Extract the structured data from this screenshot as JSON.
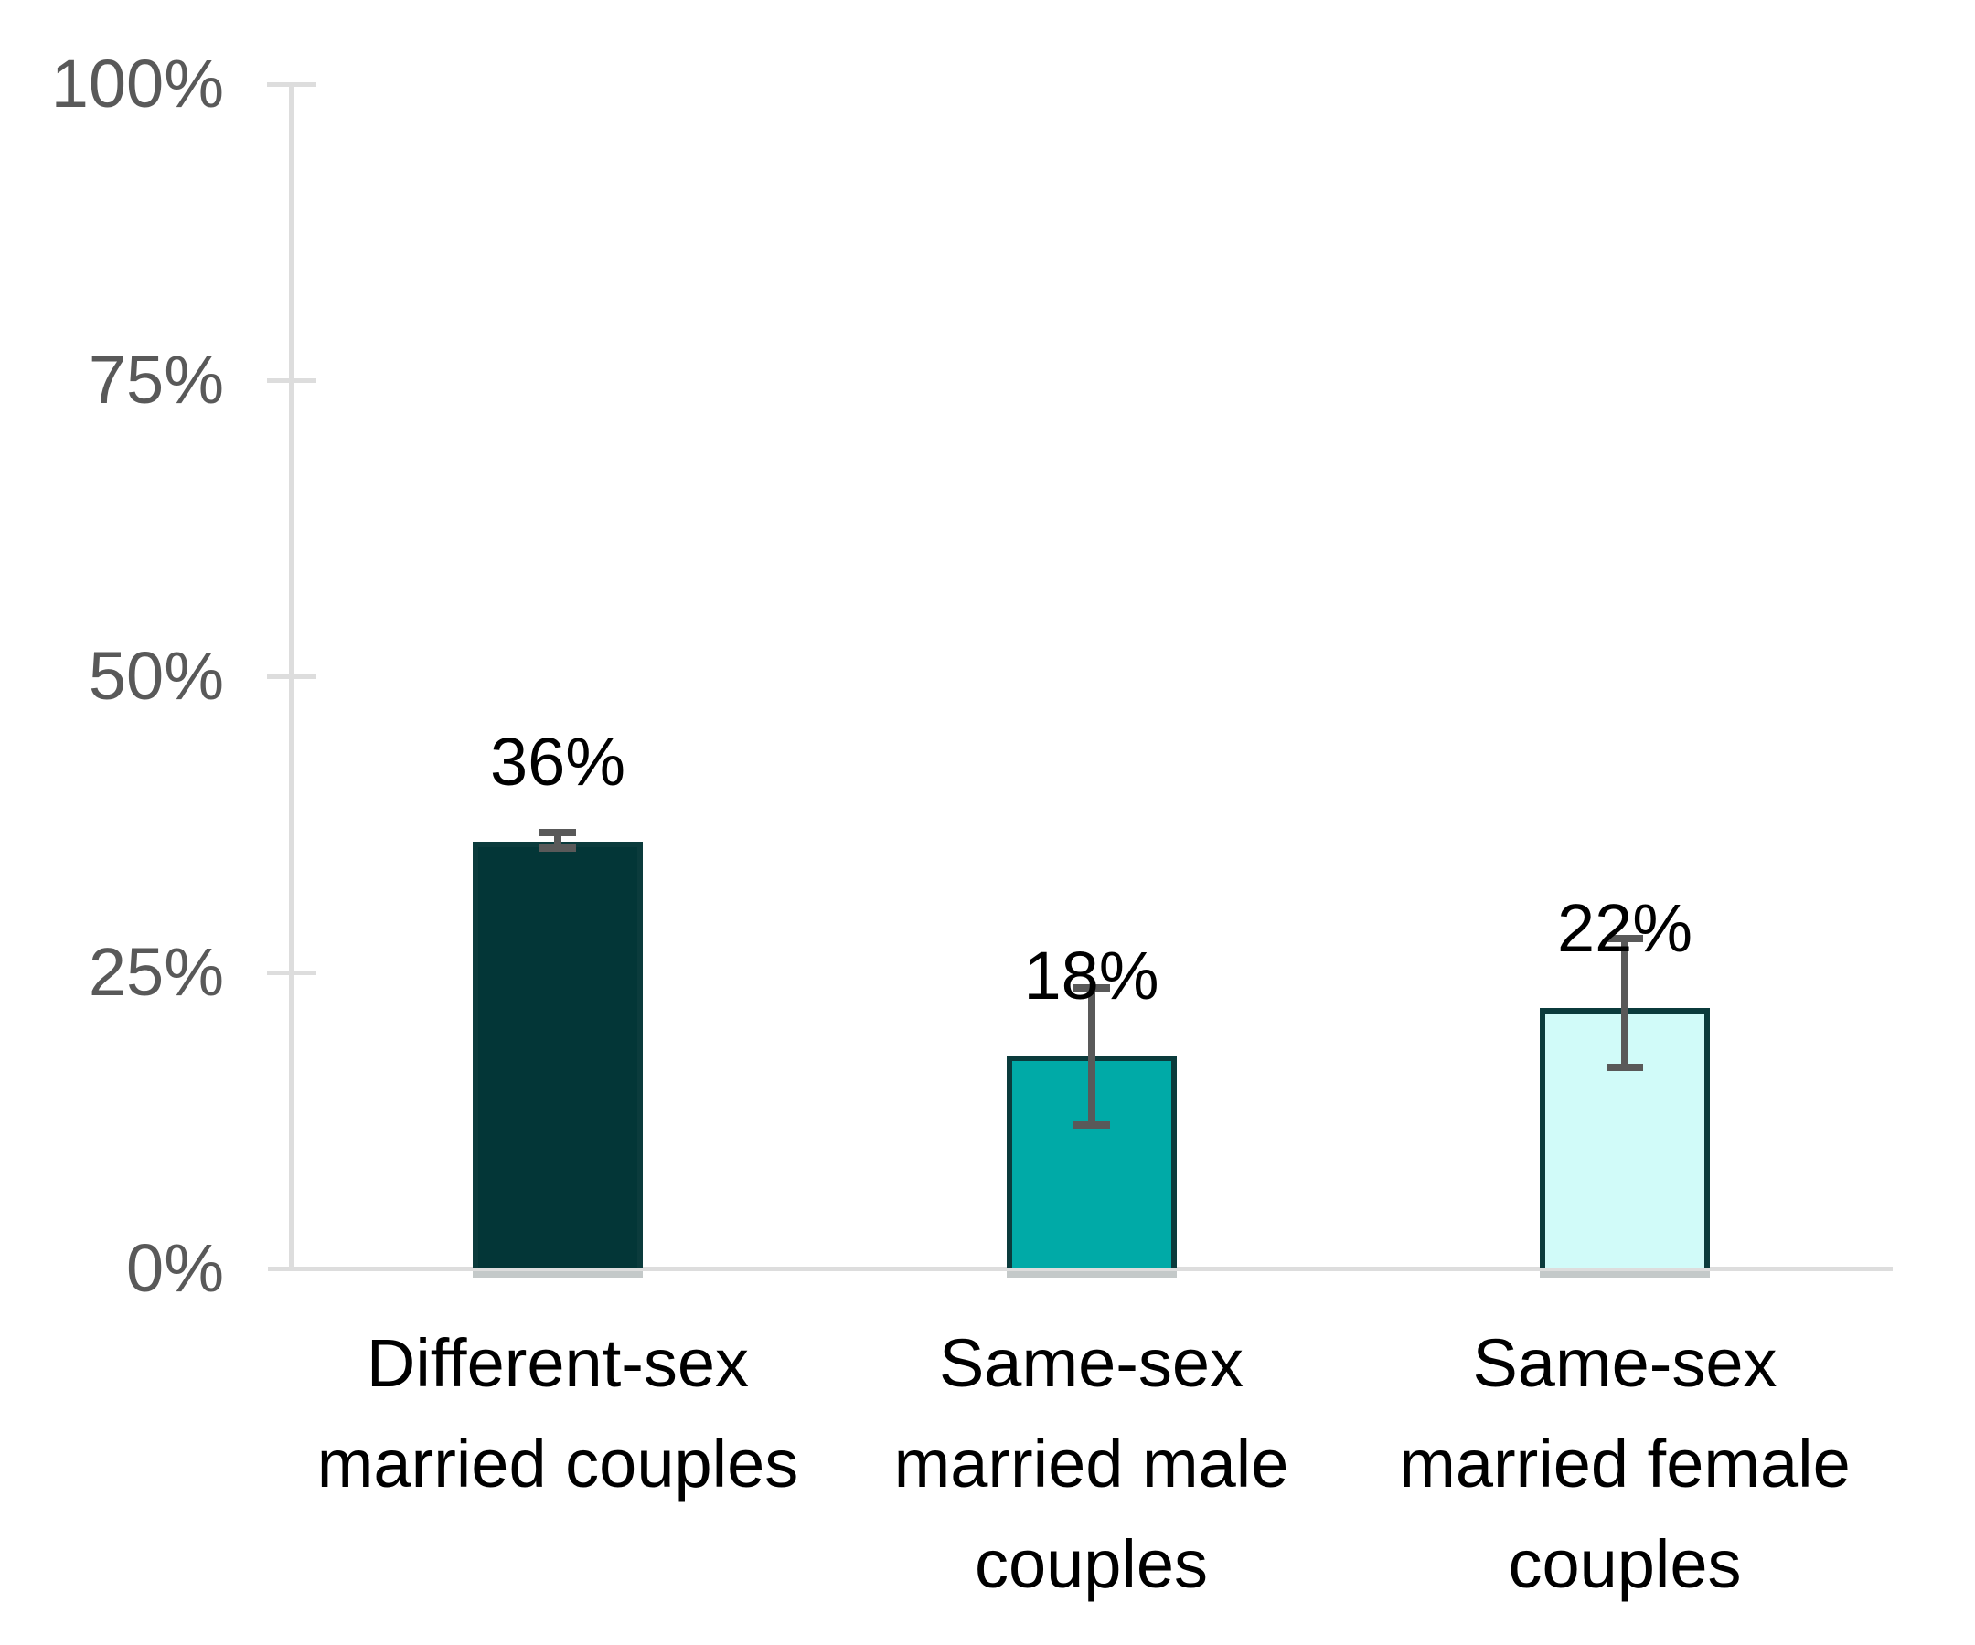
{
  "chart_data": {
    "type": "bar",
    "title": "",
    "xlabel": "",
    "ylabel": "",
    "grid": false,
    "legend": "none",
    "categories": [
      "Different-sex married couples",
      "Same-sex married male couples",
      "Same-sex married female couples"
    ],
    "category_label_lines": [
      [
        "Different-sex",
        "married couples"
      ],
      [
        "Same-sex",
        "married male",
        "couples"
      ],
      [
        "Same-sex",
        "married female",
        "couples"
      ]
    ],
    "values": [
      36,
      18,
      22
    ],
    "data_labels": [
      "36%",
      "18%",
      "22%"
    ],
    "error_bars": [
      {
        "low": 35.2,
        "high": 37.1
      },
      {
        "low": 11.8,
        "high": 24.0
      },
      {
        "low": 16.7,
        "high": 28.2
      }
    ],
    "y_axis": {
      "min": 0,
      "max": 100,
      "step": 25,
      "tick_labels": [
        "0%",
        "25%",
        "50%",
        "75%",
        "100%"
      ]
    },
    "colors": {
      "bar_fills": [
        "#033637",
        "#00AAA7",
        "#D1FBF9"
      ],
      "bar_border": "#0B3B3C",
      "error_bar": "#595959",
      "axis_line": "#DDDDDD",
      "tick_label_text": "#595959",
      "value_label_text": "#000000",
      "category_label_text": "#000000",
      "background": "#FFFFFF"
    }
  }
}
